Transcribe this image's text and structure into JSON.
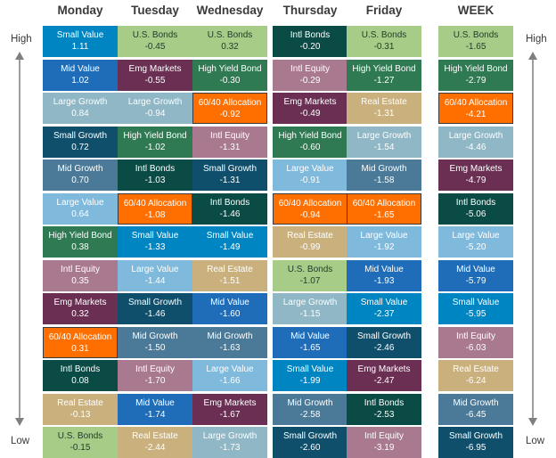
{
  "side_labels": {
    "high": "High",
    "low": "Low"
  },
  "categories": [
    "Monday",
    "Tuesday",
    "Wednesday",
    "Thursday",
    "Friday",
    "WEEK"
  ],
  "asset_colors": {
    "Small Value": "#0085c3",
    "Mid Value": "#1f6db8",
    "Large Growth": "#8fb7c5",
    "Small Growth": "#0f4f6c",
    "Mid Growth": "#4a7a98",
    "Large Value": "#7fb9dc",
    "High Yield Bond": "#2f7a52",
    "Intl Equity": "#a9798f",
    "Emg Markets": "#6a2f53",
    "60/40 Allocation": "#ff6f00",
    "Intl Bonds": "#0b4b45",
    "Real Estate": "#c9b07c",
    "U.S. Bonds": "#a6cc88"
  },
  "chart_data": {
    "type": "table",
    "title": "",
    "columns": [
      {
        "header": "Monday",
        "rows": [
          {
            "name": "Small Value",
            "value": "1.11"
          },
          {
            "name": "Mid Value",
            "value": "1.02"
          },
          {
            "name": "Large Growth",
            "value": "0.84"
          },
          {
            "name": "Small Growth",
            "value": "0.72"
          },
          {
            "name": "Mid Growth",
            "value": "0.70"
          },
          {
            "name": "Large Value",
            "value": "0.64"
          },
          {
            "name": "High Yield Bond",
            "value": "0.38"
          },
          {
            "name": "Intl Equity",
            "value": "0.35"
          },
          {
            "name": "Emg Markets",
            "value": "0.32"
          },
          {
            "name": "60/40 Allocation",
            "value": "0.31"
          },
          {
            "name": "Intl Bonds",
            "value": "0.08"
          },
          {
            "name": "Real Estate",
            "value": "-0.13"
          },
          {
            "name": "U.S. Bonds",
            "value": "-0.15"
          }
        ]
      },
      {
        "header": "Tuesday",
        "rows": [
          {
            "name": "U.S. Bonds",
            "value": "-0.45"
          },
          {
            "name": "Emg Markets",
            "value": "-0.55"
          },
          {
            "name": "Large Growth",
            "value": "-0.94"
          },
          {
            "name": "High Yield Bond",
            "value": "-1.02"
          },
          {
            "name": "Intl Bonds",
            "value": "-1.03"
          },
          {
            "name": "60/40 Allocation",
            "value": "-1.08"
          },
          {
            "name": "Small Value",
            "value": "-1.33"
          },
          {
            "name": "Large Value",
            "value": "-1.44"
          },
          {
            "name": "Small Growth",
            "value": "-1.46"
          },
          {
            "name": "Mid Growth",
            "value": "-1.50"
          },
          {
            "name": "Intl Equity",
            "value": "-1.70"
          },
          {
            "name": "Mid Value",
            "value": "-1.74"
          },
          {
            "name": "Real Estate",
            "value": "-2.44"
          }
        ]
      },
      {
        "header": "Wednesday",
        "rows": [
          {
            "name": "U.S. Bonds",
            "value": "0.32"
          },
          {
            "name": "High Yield Bond",
            "value": "-0.30"
          },
          {
            "name": "60/40 Allocation",
            "value": "-0.92"
          },
          {
            "name": "Intl Equity",
            "value": "-1.31"
          },
          {
            "name": "Small Growth",
            "value": "-1.31"
          },
          {
            "name": "Intl Bonds",
            "value": "-1.46"
          },
          {
            "name": "Small Value",
            "value": "-1.49"
          },
          {
            "name": "Real Estate",
            "value": "-1.51"
          },
          {
            "name": "Mid Value",
            "value": "-1.60"
          },
          {
            "name": "Mid Growth",
            "value": "-1.63"
          },
          {
            "name": "Large Value",
            "value": "-1.66"
          },
          {
            "name": "Emg Markets",
            "value": "-1.67"
          },
          {
            "name": "Large Growth",
            "value": "-1.73"
          }
        ]
      },
      {
        "header": "Thursday",
        "rows": [
          {
            "name": "Intl Bonds",
            "value": "-0.20"
          },
          {
            "name": "Intl Equity",
            "value": "-0.29"
          },
          {
            "name": "Emg Markets",
            "value": "-0.49"
          },
          {
            "name": "High Yield Bond",
            "value": "-0.60"
          },
          {
            "name": "Large Value",
            "value": "-0.91"
          },
          {
            "name": "60/40 Allocation",
            "value": "-0.94"
          },
          {
            "name": "Real Estate",
            "value": "-0.99"
          },
          {
            "name": "U.S. Bonds",
            "value": "-1.07"
          },
          {
            "name": "Large Growth",
            "value": "-1.15"
          },
          {
            "name": "Mid Value",
            "value": "-1.65"
          },
          {
            "name": "Small Value",
            "value": "-1.99"
          },
          {
            "name": "Mid Growth",
            "value": "-2.58"
          },
          {
            "name": "Small Growth",
            "value": "-2.60"
          }
        ]
      },
      {
        "header": "Friday",
        "rows": [
          {
            "name": "U.S. Bonds",
            "value": "-0.31"
          },
          {
            "name": "High Yield Bond",
            "value": "-1.27"
          },
          {
            "name": "Real Estate",
            "value": "-1.31"
          },
          {
            "name": "Large Growth",
            "value": "-1.54"
          },
          {
            "name": "Mid Growth",
            "value": "-1.58"
          },
          {
            "name": "60/40 Allocation",
            "value": "-1.65"
          },
          {
            "name": "Large Value",
            "value": "-1.92"
          },
          {
            "name": "Mid Value",
            "value": "-1.93"
          },
          {
            "name": "Small Value",
            "value": "-2.37"
          },
          {
            "name": "Small Growth",
            "value": "-2.46"
          },
          {
            "name": "Emg Markets",
            "value": "-2.47"
          },
          {
            "name": "Intl Bonds",
            "value": "-2.53"
          },
          {
            "name": "Intl Equity",
            "value": "-3.19"
          }
        ]
      },
      {
        "header": "WEEK",
        "rows": [
          {
            "name": "U.S. Bonds",
            "value": "-1.65"
          },
          {
            "name": "High Yield Bond",
            "value": "-2.79"
          },
          {
            "name": "60/40 Allocation",
            "value": "-4.21"
          },
          {
            "name": "Large Growth",
            "value": "-4.46"
          },
          {
            "name": "Emg Markets",
            "value": "-4.79"
          },
          {
            "name": "Intl Bonds",
            "value": "-5.06"
          },
          {
            "name": "Large Value",
            "value": "-5.20"
          },
          {
            "name": "Mid Value",
            "value": "-5.79"
          },
          {
            "name": "Small Value",
            "value": "-5.95"
          },
          {
            "name": "Intl Equity",
            "value": "-6.03"
          },
          {
            "name": "Real Estate",
            "value": "-6.24"
          },
          {
            "name": "Mid Growth",
            "value": "-6.45"
          },
          {
            "name": "Small Growth",
            "value": "-6.95"
          }
        ]
      }
    ]
  }
}
